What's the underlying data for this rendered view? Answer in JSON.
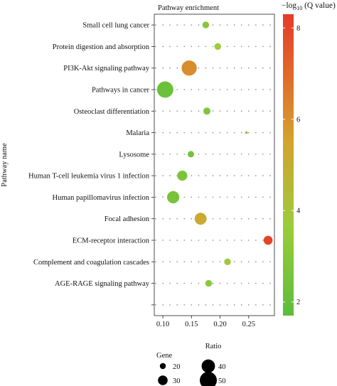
{
  "chart_data": {
    "type": "scatter",
    "title": "Pathway enrichment",
    "xlabel": "Ratio",
    "ylabel": "Pathway name",
    "xlim": [
      0.085,
      0.295
    ],
    "xticks": [
      0.1,
      0.15,
      0.2,
      0.25
    ],
    "xtick_labels": [
      "0.10",
      "0.15",
      "0.20",
      "0.25"
    ],
    "categories": [
      "Small cell lung cancer",
      "Protein digestion and absorption",
      "PI3K-Akt signaling pathway",
      "Pathways in cancer",
      "Osteoclast differentiation",
      "Malaria",
      "Lysosome",
      "Human T-cell leukemia virus 1 infection",
      "Human papillomavirus infection",
      "Focal adhesion",
      "ECM-receptor interaction",
      "Complement and coagulation cascades",
      "AGE-RAGE signaling pathway",
      ""
    ],
    "points": [
      {
        "pathway": "Small cell lung cancer",
        "ratio": 0.175,
        "gene": 22,
        "q": 2.8
      },
      {
        "pathway": "Protein digestion and absorption",
        "ratio": 0.196,
        "gene": 22,
        "q": 3.4
      },
      {
        "pathway": "PI3K-Akt signaling pathway",
        "ratio": 0.146,
        "gene": 45,
        "q": 5.6
      },
      {
        "pathway": "Pathways in cancer",
        "ratio": 0.104,
        "gene": 48,
        "q": 2.1
      },
      {
        "pathway": "Osteoclast differentiation",
        "ratio": 0.177,
        "gene": 23,
        "q": 2.6
      },
      {
        "pathway": "Malaria",
        "ratio": 0.246,
        "gene": 11,
        "q": 3.0
      },
      {
        "pathway": "Lysosome",
        "ratio": 0.149,
        "gene": 21,
        "q": 2.3
      },
      {
        "pathway": "Human T-cell leukemia virus 1 infection",
        "ratio": 0.134,
        "gene": 31,
        "q": 2.5
      },
      {
        "pathway": "Human papillomavirus infection",
        "ratio": 0.118,
        "gene": 37,
        "q": 2.4
      },
      {
        "pathway": "Focal adhesion",
        "ratio": 0.166,
        "gene": 36,
        "q": 4.7
      },
      {
        "pathway": "ECM-receptor interaction",
        "ratio": 0.284,
        "gene": 28,
        "q": 8.0
      },
      {
        "pathway": "Complement and coagulation cascades",
        "ratio": 0.213,
        "gene": 22,
        "q": 3.5
      },
      {
        "pathway": "AGE-RAGE signaling pathway",
        "ratio": 0.18,
        "gene": 22,
        "q": 2.9
      }
    ],
    "size_legend": {
      "title": "Gene",
      "values": [
        20,
        30,
        40,
        50
      ],
      "labels": [
        "20",
        "30",
        "40",
        "50"
      ]
    },
    "color_legend": {
      "title": "−log10 (Q value)",
      "ticks": [
        2,
        4,
        6,
        8
      ],
      "tick_labels": [
        "2",
        "4",
        "6",
        "8"
      ],
      "range": [
        1.7,
        8.3
      ],
      "colors": [
        "#5cbd3a",
        "#9ccc3a",
        "#d4a22e",
        "#e06a2a",
        "#e63a2a"
      ]
    },
    "grid": true,
    "legend": "right"
  }
}
